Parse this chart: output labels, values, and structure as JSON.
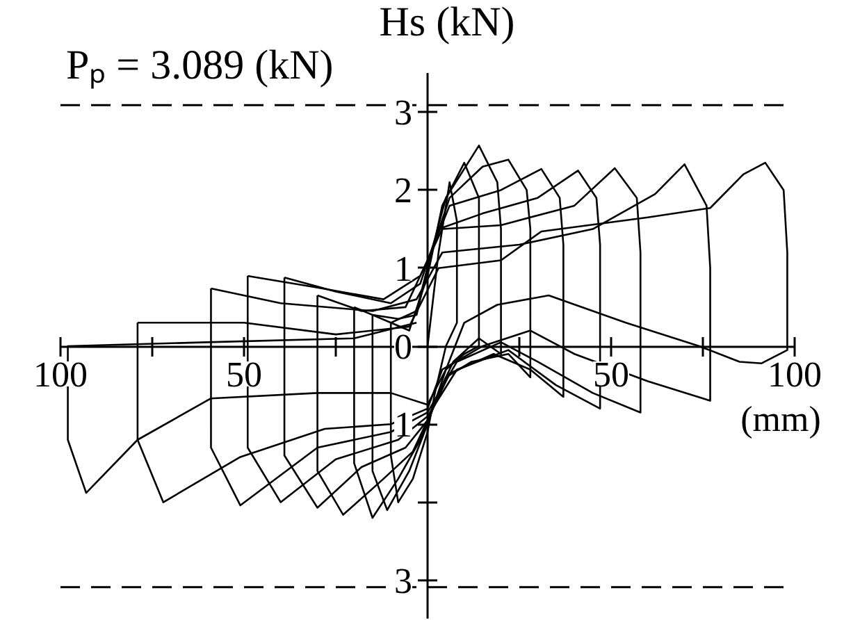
{
  "chart_data": {
    "type": "line",
    "xlabel": "(mm)",
    "ylabel": "Hs (kN)",
    "xlim": [
      -100,
      100
    ],
    "ylim": [
      -3.5,
      3.5
    ],
    "xticks": [
      {
        "value": -100,
        "label": "100"
      },
      {
        "value": -75,
        "label": null
      },
      {
        "value": -50,
        "label": "50"
      },
      {
        "value": -25,
        "label": null
      },
      {
        "value": 25,
        "label": null
      },
      {
        "value": 50,
        "label": "50"
      },
      {
        "value": 75,
        "label": null
      },
      {
        "value": 100,
        "label": "100"
      }
    ],
    "yticks": [
      {
        "value": -3,
        "label": "3"
      },
      {
        "value": -2,
        "label": null
      },
      {
        "value": -1,
        "label": "1"
      },
      {
        "value": 0,
        "label": "0"
      },
      1,
      2,
      3
    ],
    "ref_lines": [
      {
        "axis": "y",
        "value": 3.089,
        "label": "Pₚ = 3.089 (kN)",
        "line_style": "dashed"
      },
      {
        "axis": "y",
        "value": -3.089,
        "line_style": "dashed"
      }
    ],
    "series": [
      {
        "color": "#000000",
        "x": [
          0,
          3,
          6,
          8,
          8,
          5,
          2,
          0,
          -4,
          -8,
          -10,
          -10
        ],
        "values": [
          0,
          1.2,
          2.1,
          1.6,
          0.3,
          0.0,
          -0.6,
          -1.1,
          -1.7,
          -2.0,
          -1.4,
          0.3
        ]
      },
      {
        "color": "#000000",
        "x": [
          -10,
          -5,
          0,
          4,
          10,
          14,
          14,
          10,
          5,
          0,
          -5,
          -11,
          -15,
          -15
        ],
        "values": [
          0.3,
          0.2,
          0.9,
          1.8,
          2.35,
          1.9,
          0.0,
          -0.1,
          -0.3,
          -1.0,
          -1.6,
          -2.1,
          -1.6,
          0.4
        ]
      },
      {
        "color": "#000000",
        "x": [
          -15,
          -8,
          -3,
          1,
          5,
          14,
          19,
          20,
          20,
          14,
          7,
          2,
          -2,
          -8,
          -15,
          -20,
          -20
        ],
        "values": [
          0.4,
          0.35,
          0.4,
          1.2,
          1.9,
          2.57,
          2.1,
          1.5,
          -0.1,
          0.1,
          -0.2,
          -0.7,
          -1.2,
          -1.7,
          -2.2,
          -1.5,
          0.5
        ]
      },
      {
        "color": "#000000",
        "x": [
          -20,
          -10,
          -3,
          1,
          6,
          15,
          22,
          27,
          28,
          28,
          22,
          12,
          5,
          0,
          -4,
          -12,
          -23,
          -30,
          -30
        ],
        "values": [
          0.5,
          0.3,
          0.45,
          1.2,
          1.9,
          2.3,
          2.39,
          2.0,
          1.5,
          -0.4,
          -0.1,
          -0.2,
          -0.4,
          -0.95,
          -1.35,
          -1.7,
          -2.16,
          -1.6,
          0.65
        ]
      },
      {
        "color": "#000000",
        "x": [
          -30,
          -18,
          -6,
          0,
          6,
          20,
          31,
          36,
          37,
          37,
          28,
          18,
          6,
          0,
          -6,
          -18,
          -30,
          -39,
          -39
        ],
        "values": [
          0.65,
          0.45,
          0.5,
          1.1,
          1.8,
          2.0,
          2.27,
          1.9,
          1.3,
          -0.65,
          -0.3,
          -0.1,
          -0.35,
          -0.95,
          -1.3,
          -1.55,
          -2.07,
          -1.4,
          0.88
        ]
      },
      {
        "color": "#000000",
        "x": [
          -39,
          -25,
          -10,
          -2,
          3,
          15,
          30,
          41,
          46,
          47,
          47,
          35,
          22,
          8,
          0,
          -8,
          -25,
          -40,
          -49,
          -49
        ],
        "values": [
          0.88,
          0.7,
          0.55,
          0.8,
          1.5,
          1.7,
          1.9,
          2.25,
          1.9,
          1.3,
          -0.8,
          -0.5,
          -0.05,
          -0.3,
          -0.9,
          -1.2,
          -1.45,
          -2.0,
          -1.3,
          0.9
        ]
      },
      {
        "color": "#000000",
        "x": [
          -49,
          -30,
          -12,
          -2,
          4,
          20,
          40,
          51,
          57,
          58,
          58,
          45,
          30,
          20,
          8,
          0,
          -10,
          -30,
          -51,
          -59,
          -59
        ],
        "values": [
          0.9,
          0.75,
          0.6,
          0.9,
          1.5,
          1.55,
          1.8,
          2.28,
          1.9,
          1.2,
          -0.85,
          -0.6,
          -0.2,
          0.05,
          -0.2,
          -0.85,
          -1.1,
          -1.3,
          -2.04,
          -1.3,
          0.74
        ]
      },
      {
        "color": "#000000",
        "x": [
          -59,
          -40,
          -15,
          -3,
          4,
          25,
          45,
          62,
          70,
          76,
          77,
          77,
          60,
          40,
          28,
          15,
          4,
          0,
          -10,
          -28,
          -51,
          -72,
          -79,
          -79
        ],
        "values": [
          0.74,
          0.55,
          0.45,
          0.6,
          1.2,
          1.3,
          1.5,
          1.95,
          2.33,
          1.8,
          1.0,
          -0.7,
          -0.45,
          -0.1,
          0.2,
          0.0,
          -0.3,
          -0.8,
          -1.0,
          -1.06,
          -1.42,
          -2.0,
          -1.2,
          0.3
        ]
      },
      {
        "color": "#000000",
        "x": [
          -79,
          -50,
          -25,
          -5,
          3,
          20,
          31,
          60,
          77,
          86,
          92,
          97,
          98,
          98,
          91,
          85,
          74,
          54,
          33,
          19,
          10,
          5,
          0,
          -10,
          -30,
          -59,
          -79,
          -93,
          -98,
          -98,
          -60,
          -20,
          -3
        ],
        "values": [
          0.3,
          0.3,
          0.15,
          0.25,
          1.0,
          1.1,
          1.47,
          1.65,
          1.77,
          2.2,
          2.35,
          2.0,
          1.2,
          -0.05,
          -0.22,
          -0.2,
          0.0,
          0.3,
          0.65,
          0.53,
          0.3,
          -0.3,
          -0.75,
          -0.6,
          -0.6,
          -0.67,
          -1.2,
          -1.88,
          -1.2,
          0.0,
          0.05,
          0.1,
          0.3
        ]
      }
    ]
  }
}
